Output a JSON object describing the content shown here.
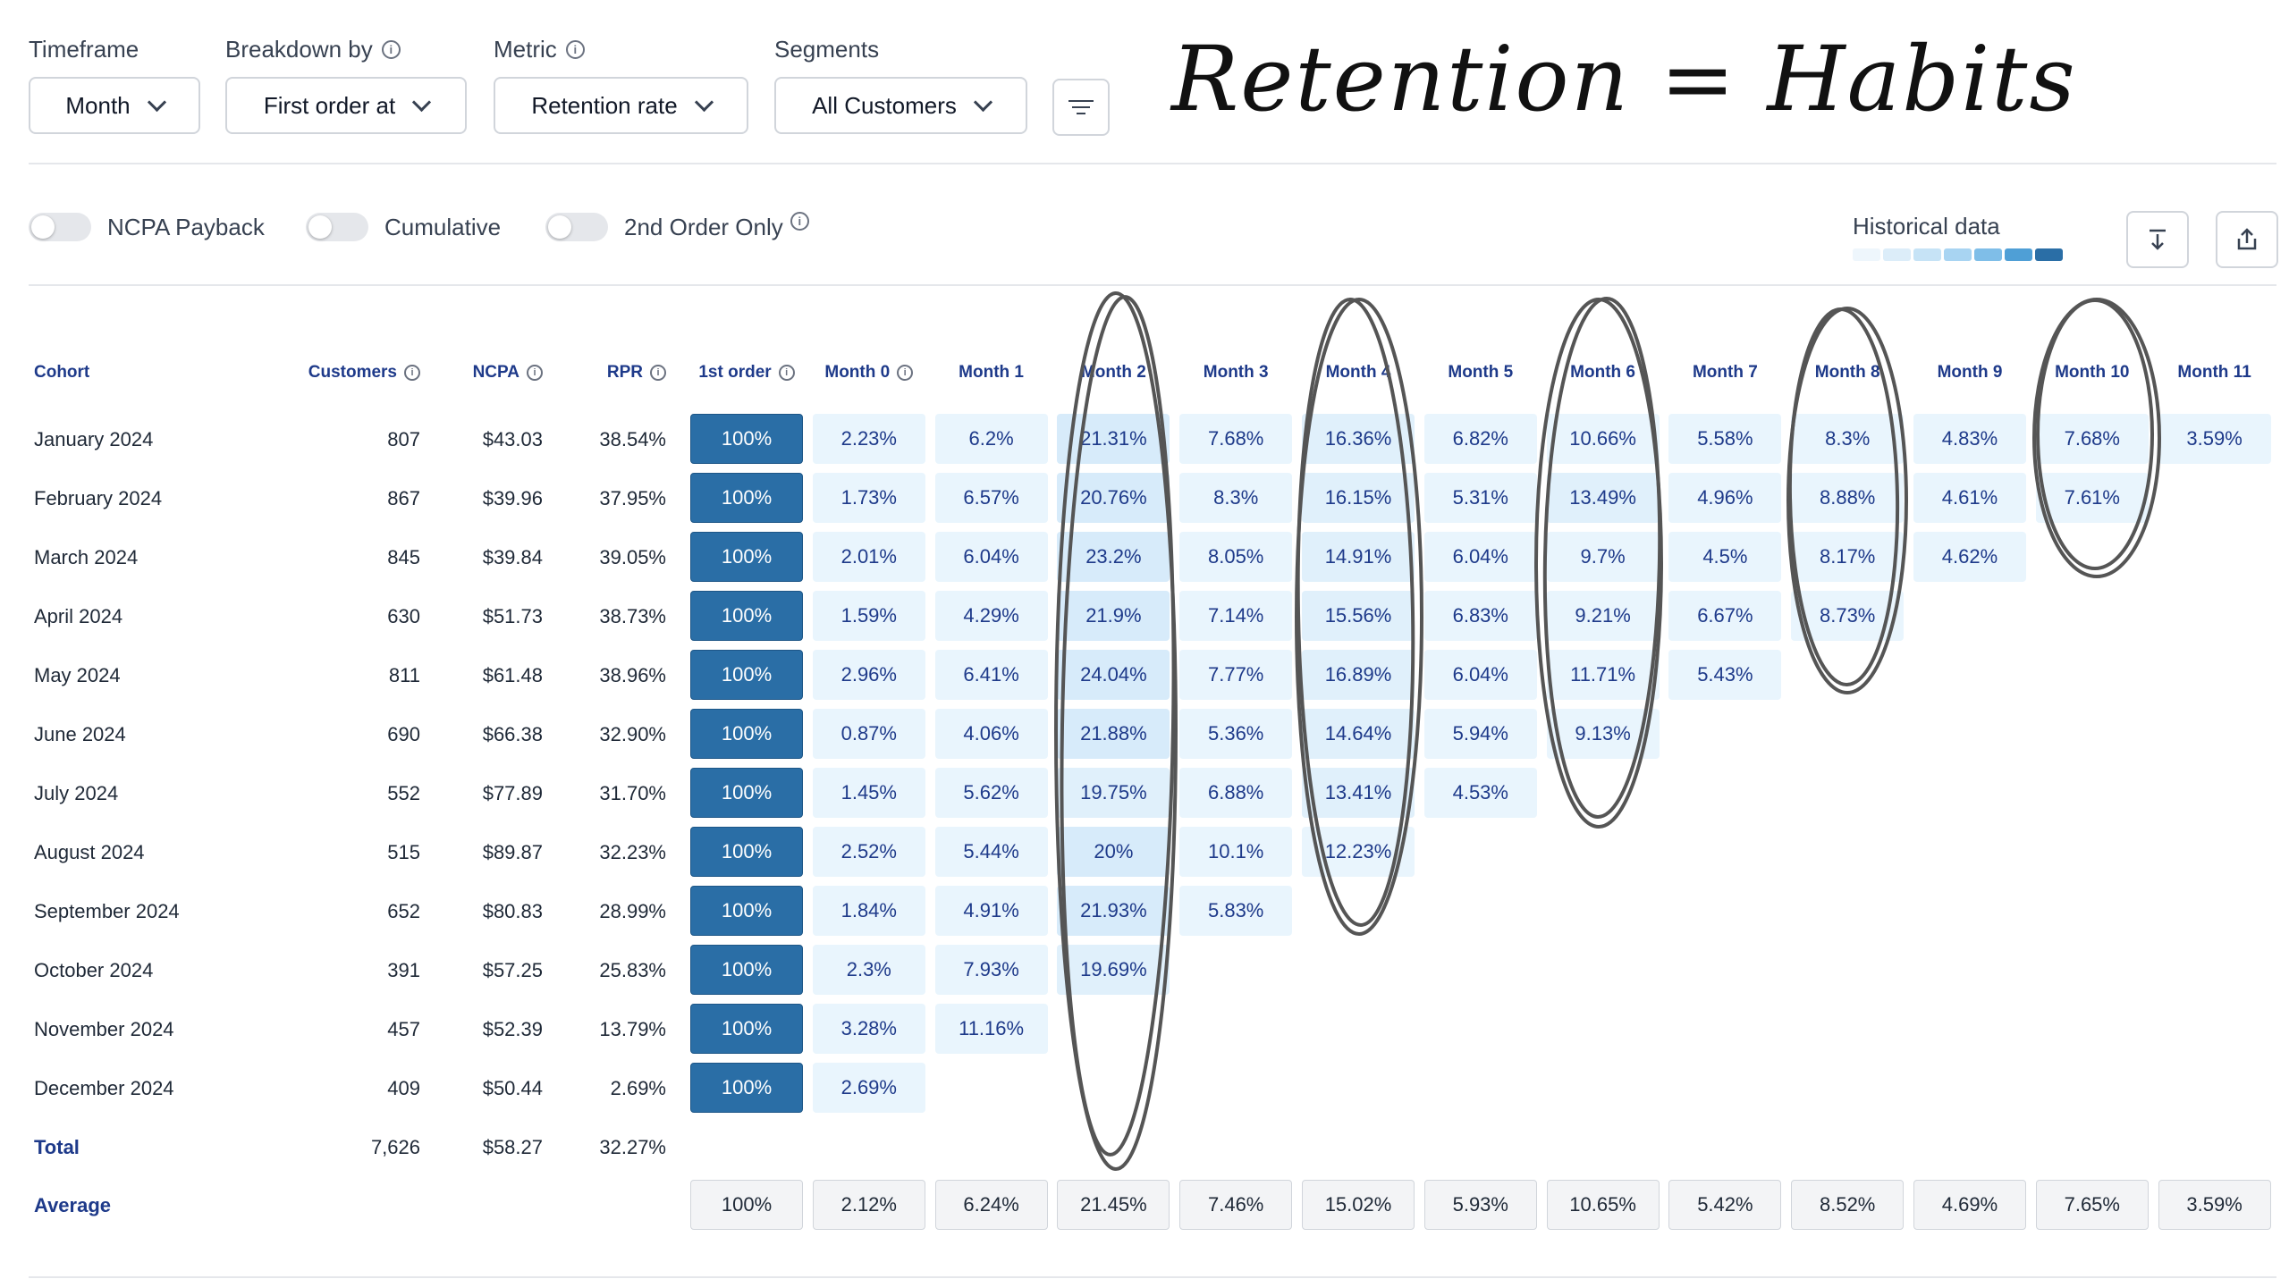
{
  "filters": {
    "timeframe": {
      "label": "Timeframe",
      "value": "Month"
    },
    "breakdown": {
      "label": "Breakdown by",
      "value": "First order at"
    },
    "metric": {
      "label": "Metric",
      "value": "Retention rate"
    },
    "segments": {
      "label": "Segments",
      "value": "All Customers"
    }
  },
  "annotation": "Retention = Habits",
  "toggles": [
    {
      "label": "NCPA Payback"
    },
    {
      "label": "Cumulative"
    },
    {
      "label": "2nd Order Only"
    }
  ],
  "historical_label": "Historical data",
  "legend_colors": [
    "#eef6fc",
    "#dcedf9",
    "#c6e3f6",
    "#a8d4f2",
    "#7fbee8",
    "#4f9fd6",
    "#2a6ea6"
  ],
  "table": {
    "headers": [
      "Cohort",
      "Customers",
      "NCPA",
      "RPR",
      "1st order",
      "Month 0",
      "Month 1",
      "Month 2",
      "Month 3",
      "Month 4",
      "Month 5",
      "Month 6",
      "Month 7",
      "Month 8",
      "Month 9",
      "Month 10",
      "Month 11"
    ],
    "rows": [
      {
        "cohort": "January 2024",
        "customers": "807",
        "ncpa": "$43.03",
        "rpr": "38.54%",
        "first": "100%",
        "months": [
          "2.23%",
          "6.2%",
          "21.31%",
          "7.68%",
          "16.36%",
          "6.82%",
          "10.66%",
          "5.58%",
          "8.3%",
          "4.83%",
          "7.68%",
          "3.59%"
        ]
      },
      {
        "cohort": "February 2024",
        "customers": "867",
        "ncpa": "$39.96",
        "rpr": "37.95%",
        "first": "100%",
        "months": [
          "1.73%",
          "6.57%",
          "20.76%",
          "8.3%",
          "16.15%",
          "5.31%",
          "13.49%",
          "4.96%",
          "8.88%",
          "4.61%",
          "7.61%"
        ]
      },
      {
        "cohort": "March 2024",
        "customers": "845",
        "ncpa": "$39.84",
        "rpr": "39.05%",
        "first": "100%",
        "months": [
          "2.01%",
          "6.04%",
          "23.2%",
          "8.05%",
          "14.91%",
          "6.04%",
          "9.7%",
          "4.5%",
          "8.17%",
          "4.62%"
        ]
      },
      {
        "cohort": "April 2024",
        "customers": "630",
        "ncpa": "$51.73",
        "rpr": "38.73%",
        "first": "100%",
        "months": [
          "1.59%",
          "4.29%",
          "21.9%",
          "7.14%",
          "15.56%",
          "6.83%",
          "9.21%",
          "6.67%",
          "8.73%"
        ]
      },
      {
        "cohort": "May 2024",
        "customers": "811",
        "ncpa": "$61.48",
        "rpr": "38.96%",
        "first": "100%",
        "months": [
          "2.96%",
          "6.41%",
          "24.04%",
          "7.77%",
          "16.89%",
          "6.04%",
          "11.71%",
          "5.43%"
        ]
      },
      {
        "cohort": "June 2024",
        "customers": "690",
        "ncpa": "$66.38",
        "rpr": "32.90%",
        "first": "100%",
        "months": [
          "0.87%",
          "4.06%",
          "21.88%",
          "5.36%",
          "14.64%",
          "5.94%",
          "9.13%"
        ]
      },
      {
        "cohort": "July 2024",
        "customers": "552",
        "ncpa": "$77.89",
        "rpr": "31.70%",
        "first": "100%",
        "months": [
          "1.45%",
          "5.62%",
          "19.75%",
          "6.88%",
          "13.41%",
          "4.53%"
        ]
      },
      {
        "cohort": "August 2024",
        "customers": "515",
        "ncpa": "$89.87",
        "rpr": "32.23%",
        "first": "100%",
        "months": [
          "2.52%",
          "5.44%",
          "20%",
          "10.1%",
          "12.23%"
        ]
      },
      {
        "cohort": "September 2024",
        "customers": "652",
        "ncpa": "$80.83",
        "rpr": "28.99%",
        "first": "100%",
        "months": [
          "1.84%",
          "4.91%",
          "21.93%",
          "5.83%"
        ]
      },
      {
        "cohort": "October 2024",
        "customers": "391",
        "ncpa": "$57.25",
        "rpr": "25.83%",
        "first": "100%",
        "months": [
          "2.3%",
          "7.93%",
          "19.69%"
        ]
      },
      {
        "cohort": "November 2024",
        "customers": "457",
        "ncpa": "$52.39",
        "rpr": "13.79%",
        "first": "100%",
        "months": [
          "3.28%",
          "11.16%"
        ]
      },
      {
        "cohort": "December 2024",
        "customers": "409",
        "ncpa": "$50.44",
        "rpr": "2.69%",
        "first": "100%",
        "months": [
          "2.69%"
        ]
      }
    ],
    "total": {
      "label": "Total",
      "customers": "7,626",
      "ncpa": "$58.27",
      "rpr": "32.27%"
    },
    "average": {
      "label": "Average",
      "values": [
        "100%",
        "2.12%",
        "6.24%",
        "21.45%",
        "7.46%",
        "15.02%",
        "5.93%",
        "10.65%",
        "5.42%",
        "8.52%",
        "4.69%",
        "7.65%",
        "3.59%"
      ]
    }
  }
}
